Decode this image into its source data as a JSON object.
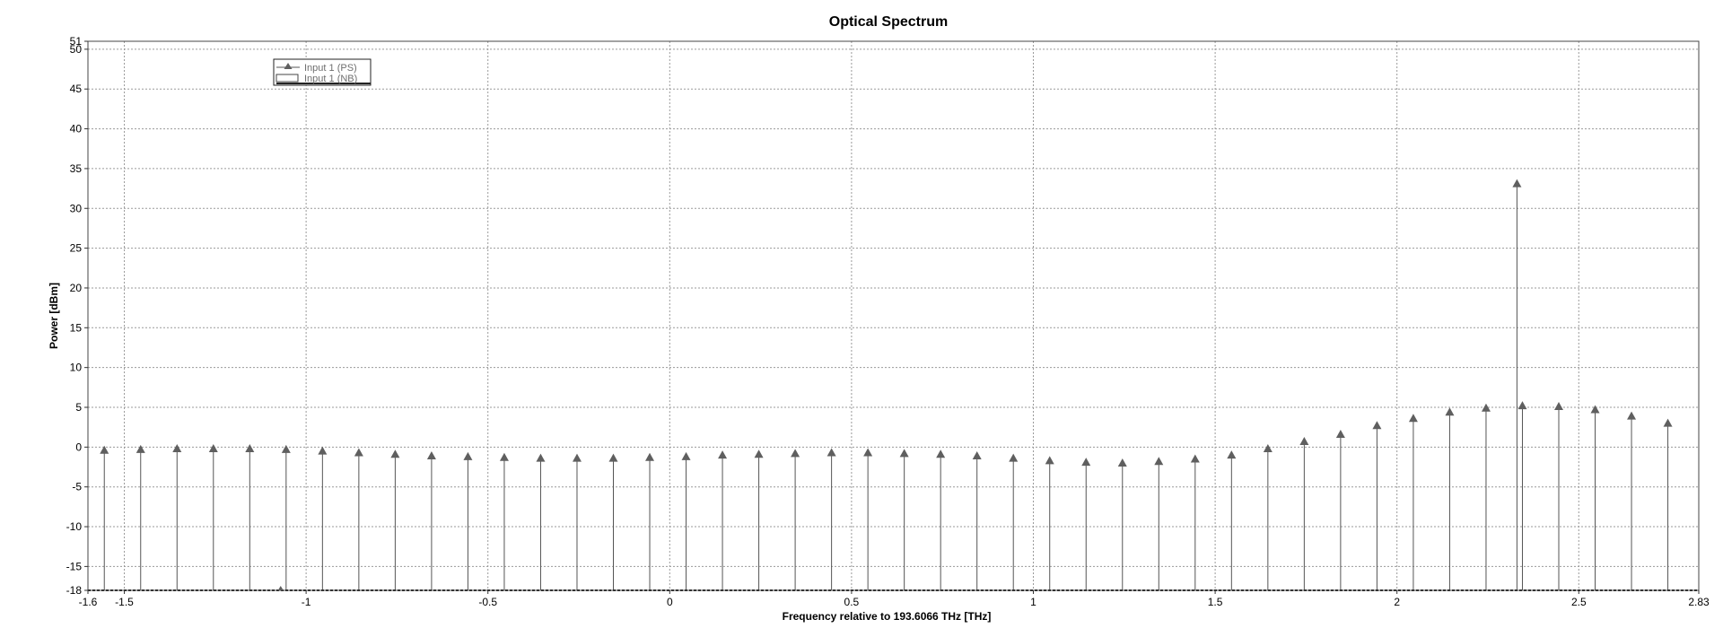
{
  "chart_data": {
    "type": "line",
    "title": "Optical Spectrum",
    "xlabel": "Frequency relative to 193.6066 THz [THz]",
    "ylabel": "Power [dBm]",
    "xlim": [
      -1.6,
      2.83
    ],
    "ylim": [
      -18,
      51
    ],
    "x_ticks": [
      -1.6,
      -1.5,
      -1,
      -0.5,
      0,
      0.5,
      1,
      1.5,
      2,
      2.5,
      2.83
    ],
    "x_tick_labels": [
      "-1.6",
      "-1.5",
      "-1",
      "-0.5",
      "0",
      "0.5",
      "1",
      "1.5",
      "2",
      "2.5",
      "2.83"
    ],
    "y_ticks": [
      -18,
      -15,
      -10,
      -5,
      0,
      5,
      10,
      15,
      20,
      25,
      30,
      35,
      40,
      45,
      50,
      51
    ],
    "y_tick_labels": [
      "-18",
      "-15",
      "-10",
      "-5",
      "0",
      "5",
      "10",
      "15",
      "20",
      "25",
      "30",
      "35",
      "40",
      "45",
      "50",
      "51"
    ],
    "grid": true,
    "legend_position": "top-left",
    "legend": [
      "Input 1 (PS)",
      "Input 1 (NB)"
    ],
    "series": [
      {
        "name": "Input 1 (PS)",
        "style": "stem-triangle",
        "x": [
          -1.555,
          -1.455,
          -1.355,
          -1.255,
          -1.155,
          -1.055,
          -0.955,
          -0.855,
          -0.755,
          -0.655,
          -0.555,
          -0.455,
          -0.355,
          -0.255,
          -0.155,
          -0.055,
          0.045,
          0.145,
          0.245,
          0.345,
          0.445,
          0.545,
          0.645,
          0.745,
          0.845,
          0.945,
          1.045,
          1.145,
          1.245,
          1.345,
          1.445,
          1.545,
          1.645,
          1.745,
          1.845,
          1.945,
          2.045,
          2.145,
          2.245,
          2.33,
          2.345,
          2.445,
          2.545,
          2.645,
          2.745
        ],
        "y": [
          -0.5,
          -0.4,
          -0.3,
          -0.3,
          -0.3,
          -0.4,
          -0.6,
          -0.8,
          -1.0,
          -1.2,
          -1.3,
          -1.4,
          -1.5,
          -1.5,
          -1.5,
          -1.4,
          -1.3,
          -1.1,
          -1.0,
          -0.9,
          -0.8,
          -0.8,
          -0.9,
          -1.0,
          -1.2,
          -1.5,
          -1.8,
          -2.0,
          -2.1,
          -1.9,
          -1.6,
          -1.1,
          -0.3,
          0.6,
          1.5,
          2.6,
          3.5,
          4.3,
          4.8,
          33.0,
          5.1,
          5.0,
          4.6,
          3.8,
          2.9
        ]
      },
      {
        "name": "Input 1 (NB)",
        "style": "line",
        "x": [
          -1.6,
          2.83
        ],
        "y": [
          -18,
          -18
        ]
      }
    ]
  },
  "colors": {
    "marker": "#5f5f5f",
    "stem": "#555555",
    "grid": "#9a9a9a",
    "legend_text": "#6e6e6e"
  }
}
